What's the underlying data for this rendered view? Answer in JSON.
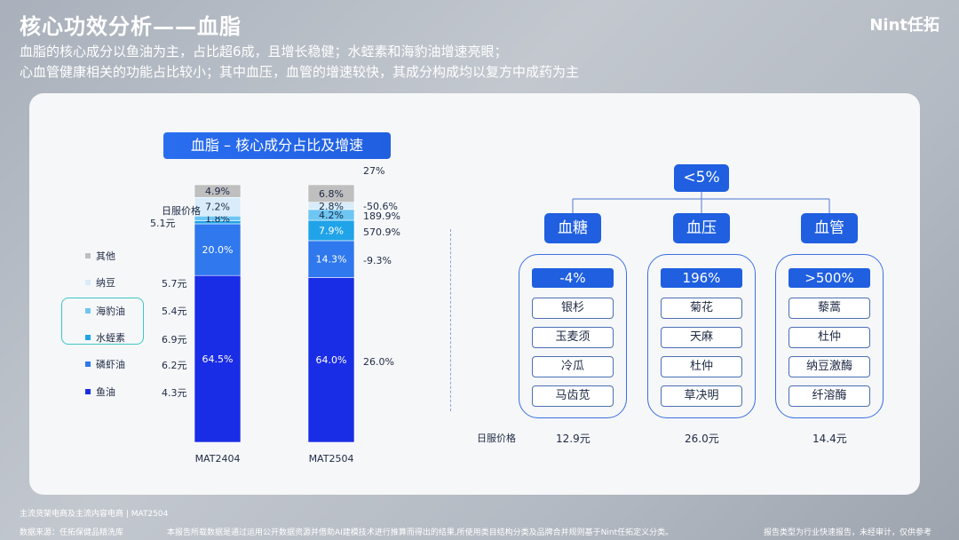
{
  "page": {
    "title": "核心功效分析——血脂",
    "logo": "Nint任拓",
    "subtitle_lines": [
      "血脂的核心成分以鱼油为主，占比超6成，且增长稳健；水蛭素和海豹油增速亮眼；",
      "心血管健康相关的功能占比较小；其中血压，血管的增速较快，其成分构成均以复方中成药为主"
    ],
    "footer": {
      "note": "主流货架电商及主流内容电商 | MAT2504",
      "source": "数据来源：任拓保健品精洗库",
      "disclaimer": "本报告所载数据是通过运用公开数据资源并借助AI建模技术进行推算而得出的结果,所使用类目结构分类及品牌合并规则基于Nint任拓定义分类。",
      "right": "报告类型为行业快速报告，未经审计，仅供参考"
    }
  },
  "chart_data": {
    "type": "bar",
    "stacked": true,
    "title": "血脂 – 核心成分占比及增速",
    "categories": [
      "MAT2404",
      "MAT2504"
    ],
    "series": [
      {
        "name": "鱼油",
        "color": "#1a2de6",
        "values": [
          64.5,
          64.0
        ],
        "labels": [
          "64.5%",
          "64.0%"
        ],
        "price": "4.3元",
        "growth": "26.0%"
      },
      {
        "name": "磷虾油",
        "color": "#2f78ee",
        "values": [
          20.0,
          14.3
        ],
        "labels": [
          "20.0%",
          "14.3%"
        ],
        "price": "6.2元",
        "growth": "-9.3%"
      },
      {
        "name": "水蛭素",
        "color": "#20a3e8",
        "values": [
          1.2,
          7.9
        ],
        "labels": [
          "",
          "7.9%"
        ],
        "price": "6.9元",
        "growth": "570.9%"
      },
      {
        "name": "海豹油",
        "color": "#6ec6f3",
        "values": [
          1.8,
          4.2
        ],
        "labels": [
          "1.8%",
          "4.2%"
        ],
        "price": "5.4元",
        "growth": "189.9%"
      },
      {
        "name": "纳豆",
        "color": "#d8ecfa",
        "values": [
          7.2,
          2.8
        ],
        "labels": [
          "7.2%",
          "2.8%"
        ],
        "price": "5.7元",
        "growth": "-50.6%"
      },
      {
        "name": "其他",
        "color": "#bfbfbf",
        "values": [
          4.9,
          6.8
        ],
        "labels": [
          "4.9%",
          "6.8%"
        ],
        "price": "",
        "growth": "27%"
      }
    ],
    "price_header": "日服价格",
    "other_price": "5.1元",
    "legend_highlight": [
      "海豹油",
      "水蛭素"
    ]
  },
  "right_panel": {
    "root": "<5%",
    "price_label": "日服价格",
    "groups": [
      {
        "name": "血糖",
        "growth": "-4%",
        "items": [
          "银杉",
          "玉麦须",
          "冷瓜",
          "马齿苋"
        ],
        "price": "12.9元"
      },
      {
        "name": "血压",
        "growth": "196%",
        "items": [
          "菊花",
          "天麻",
          "杜仲",
          "草决明"
        ],
        "price": "26.0元"
      },
      {
        "name": "血管",
        "growth": ">500%",
        "items": [
          "藜蒿",
          "杜仲",
          "纳豆激酶",
          "纤溶酶"
        ],
        "price": "14.4元"
      }
    ]
  }
}
